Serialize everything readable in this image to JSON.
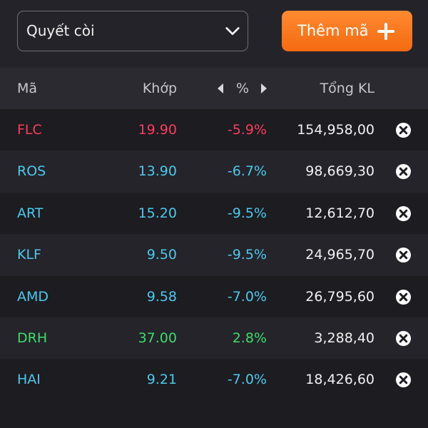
{
  "watchlist": {
    "selected": "Quyết còi"
  },
  "add_button": {
    "label": "Thêm mã"
  },
  "columns": {
    "code": "Mã",
    "match": "Khớp",
    "percent": "%",
    "total_volume": "Tổng KL"
  },
  "colors": {
    "down": "#ff3b5c",
    "ref": "#4cc9ee",
    "up": "#3ddc6c",
    "accent": "#f7791d"
  },
  "icons": {
    "dropdown": "chevron-down-icon",
    "add": "plus-icon",
    "remove": "close-circle-icon",
    "prev": "arrow-left-icon",
    "next": "arrow-right-icon"
  },
  "rows": [
    {
      "code": "FLC",
      "price": "19.90",
      "pct": "-5.9%",
      "volume": "154,958,00",
      "color": "#ff3b5c"
    },
    {
      "code": "ROS",
      "price": "13.90",
      "pct": "-6.7%",
      "volume": "98,669,30",
      "color": "#4cc9ee"
    },
    {
      "code": "ART",
      "price": "15.20",
      "pct": "-9.5%",
      "volume": "12,612,70",
      "color": "#4cc9ee"
    },
    {
      "code": "KLF",
      "price": "9.50",
      "pct": "-9.5%",
      "volume": "24,965,70",
      "color": "#4cc9ee"
    },
    {
      "code": "AMD",
      "price": "9.58",
      "pct": "-7.0%",
      "volume": "26,795,60",
      "color": "#4cc9ee"
    },
    {
      "code": "DRH",
      "price": "37.00",
      "pct": "2.8%",
      "volume": "3,288,40",
      "color": "#3ddc6c"
    },
    {
      "code": "HAI",
      "price": "9.21",
      "pct": "-7.0%",
      "volume": "18,426,60",
      "color": "#4cc9ee"
    }
  ]
}
